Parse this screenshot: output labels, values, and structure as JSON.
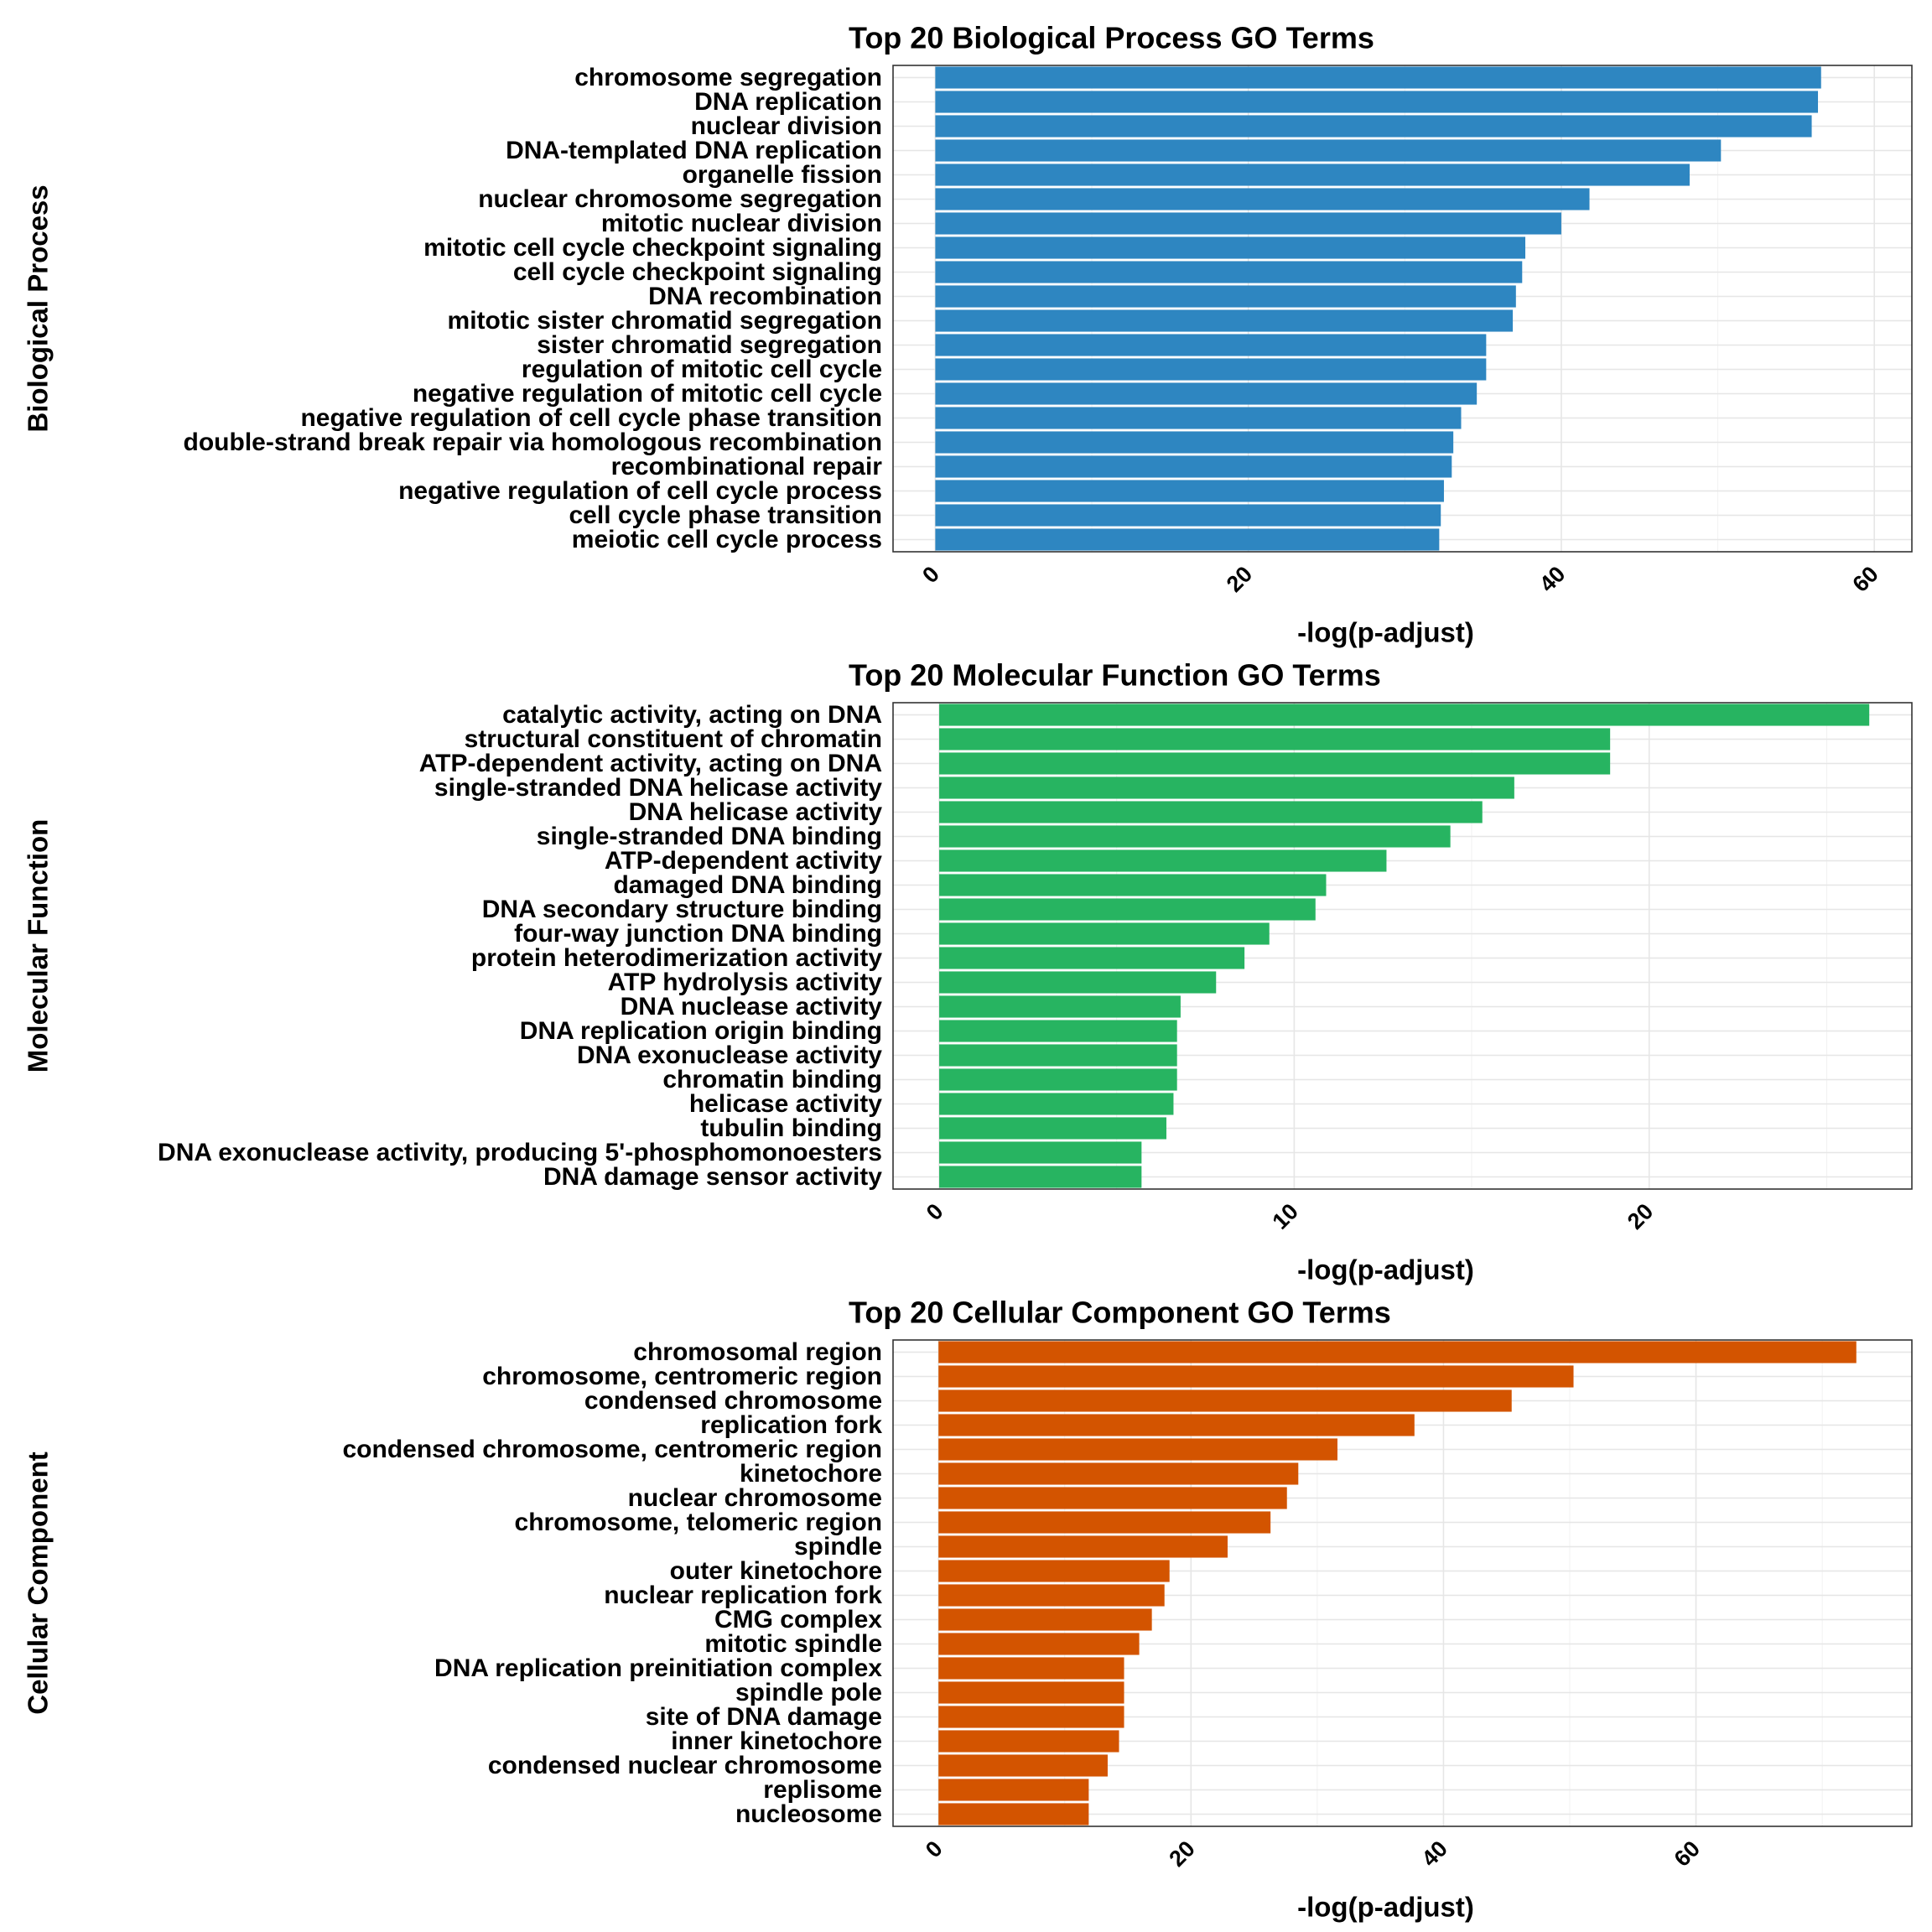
{
  "chart_data": [
    {
      "type": "bar",
      "orientation": "horizontal",
      "title": "Top 20 Biological Process GO Terms",
      "xlabel": "-log(p-adjust)",
      "ylabel": "Biological Process",
      "color": "#2e86c1",
      "xlim": [
        -2.7,
        62.4
      ],
      "xticks": [
        0,
        20,
        40,
        60
      ],
      "grid": true,
      "categories": [
        "chromosome segregation",
        "DNA replication",
        "nuclear division",
        "DNA-templated DNA replication",
        "organelle fission",
        "nuclear chromosome segregation",
        "mitotic nuclear division",
        "mitotic cell cycle checkpoint signaling",
        "cell cycle checkpoint signaling",
        "DNA recombination",
        "mitotic sister chromatid segregation",
        "sister chromatid segregation",
        "regulation of mitotic cell cycle",
        "negative regulation of mitotic cell cycle",
        "negative regulation of cell cycle phase transition",
        "double-strand break repair via homologous recombination",
        "recombinational repair",
        "negative regulation of cell cycle process",
        "cell cycle phase transition",
        "meiotic cell cycle process"
      ],
      "values": [
        56.6,
        56.4,
        56.0,
        50.2,
        48.2,
        41.8,
        40.0,
        37.7,
        37.5,
        37.1,
        36.9,
        35.2,
        35.2,
        34.6,
        33.6,
        33.1,
        33.0,
        32.5,
        32.3,
        32.2
      ]
    },
    {
      "type": "bar",
      "orientation": "horizontal",
      "title": "Top 20 Molecular Function GO Terms",
      "xlabel": "-log(p-adjust)",
      "ylabel": "Molecular Function",
      "color": "#27b461",
      "xlim": [
        -1.3,
        27.4
      ],
      "xticks": [
        0,
        10,
        20
      ],
      "grid": true,
      "categories": [
        "catalytic activity, acting on DNA",
        "structural constituent of chromatin",
        "ATP-dependent activity, acting on DNA",
        "single-stranded DNA helicase activity",
        "DNA helicase activity",
        "single-stranded DNA binding",
        "ATP-dependent activity",
        "damaged DNA binding",
        "DNA secondary structure binding",
        "four-way junction DNA binding",
        "protein heterodimerization activity",
        "ATP hydrolysis activity",
        "DNA nuclease activity",
        "DNA replication origin binding",
        "DNA exonuclease activity",
        "chromatin binding",
        "helicase activity",
        "tubulin binding",
        "DNA exonuclease activity, producing 5'-phosphomonoesters",
        "DNA damage sensor activity"
      ],
      "values": [
        26.2,
        18.9,
        18.9,
        16.2,
        15.3,
        14.4,
        12.6,
        10.9,
        10.6,
        9.3,
        8.6,
        7.8,
        6.8,
        6.7,
        6.7,
        6.7,
        6.6,
        6.4,
        5.7,
        5.7
      ]
    },
    {
      "type": "bar",
      "orientation": "horizontal",
      "title": "Top 20 Cellular Component GO Terms",
      "xlabel": "-log(p-adjust)",
      "ylabel": "Cellular Component",
      "color": "#d35400",
      "xlim": [
        -3.6,
        77.1
      ],
      "xticks": [
        0,
        20,
        40,
        60
      ],
      "grid": true,
      "categories": [
        "chromosomal region",
        "chromosome, centromeric region",
        "condensed chromosome",
        "replication fork",
        "condensed chromosome, centromeric region",
        "kinetochore",
        "nuclear chromosome",
        "chromosome, telomeric region",
        "spindle",
        "outer kinetochore",
        "nuclear replication fork",
        "CMG complex",
        "mitotic spindle",
        "DNA replication preinitiation complex",
        "spindle pole",
        "site of DNA damage",
        "inner kinetochore",
        "condensed nuclear chromosome",
        "replisome",
        "nucleosome"
      ],
      "values": [
        72.7,
        50.3,
        45.4,
        37.7,
        31.6,
        28.5,
        27.6,
        26.3,
        22.9,
        18.3,
        17.9,
        16.9,
        15.9,
        14.7,
        14.7,
        14.7,
        14.3,
        13.4,
        11.9,
        11.9
      ]
    }
  ]
}
